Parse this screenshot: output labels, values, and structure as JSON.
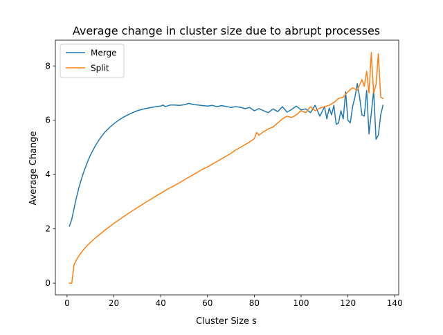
{
  "chart_data": {
    "type": "line",
    "title": "Average change in cluster size due to abrupt processes",
    "xlabel": "Cluster Size s",
    "ylabel": "Average Change",
    "xlim": [
      -5,
      141.7
    ],
    "ylim": [
      -0.43,
      8.95
    ],
    "xticks": [
      0,
      20,
      40,
      60,
      80,
      100,
      120,
      140
    ],
    "yticks": [
      0,
      2,
      4,
      6,
      8
    ],
    "legend_position": "top-left",
    "grid": false,
    "series": [
      {
        "name": "Merge",
        "color": "#1f77b4",
        "x": [
          1,
          2,
          3,
          4,
          5,
          6,
          7,
          8,
          9,
          10,
          12,
          14,
          16,
          18,
          20,
          22,
          24,
          26,
          28,
          30,
          32,
          34,
          36,
          38,
          40,
          41,
          42,
          44,
          46,
          48,
          50,
          52,
          54,
          56,
          58,
          60,
          62,
          64,
          66,
          68,
          70,
          72,
          74,
          76,
          78,
          80,
          82,
          84,
          86,
          88,
          90,
          92,
          94,
          96,
          98,
          100,
          102,
          104,
          106,
          108,
          110,
          111,
          112,
          113,
          114,
          115,
          116,
          117,
          118,
          119,
          120,
          121,
          122,
          123,
          124,
          125,
          126,
          127,
          128,
          129,
          130,
          131,
          132,
          133,
          134,
          135
        ],
        "y": [
          2.1,
          2.35,
          2.75,
          3.15,
          3.5,
          3.8,
          4.07,
          4.3,
          4.52,
          4.72,
          5.05,
          5.32,
          5.55,
          5.72,
          5.87,
          6.0,
          6.11,
          6.2,
          6.28,
          6.35,
          6.4,
          6.44,
          6.47,
          6.5,
          6.52,
          6.56,
          6.5,
          6.56,
          6.56,
          6.55,
          6.57,
          6.62,
          6.58,
          6.56,
          6.54,
          6.52,
          6.55,
          6.5,
          6.54,
          6.51,
          6.47,
          6.5,
          6.48,
          6.43,
          6.47,
          6.35,
          6.43,
          6.35,
          6.28,
          6.42,
          6.32,
          6.5,
          6.3,
          6.4,
          6.52,
          6.38,
          6.42,
          6.28,
          6.55,
          6.15,
          6.5,
          6.05,
          6.45,
          6.2,
          6.55,
          5.85,
          5.9,
          6.35,
          6.05,
          7.05,
          6.0,
          5.9,
          6.5,
          6.85,
          7.35,
          6.85,
          6.2,
          6.15,
          7.1,
          5.5,
          6.25,
          7.1,
          5.3,
          5.45,
          6.2,
          6.55
        ]
      },
      {
        "name": "Split",
        "color": "#ff7f0e",
        "x": [
          1,
          2,
          3,
          4,
          5,
          6,
          7,
          8,
          9,
          10,
          12,
          14,
          16,
          18,
          20,
          22,
          24,
          26,
          28,
          30,
          32,
          34,
          36,
          38,
          40,
          42,
          44,
          46,
          48,
          50,
          52,
          54,
          56,
          58,
          60,
          62,
          64,
          66,
          68,
          70,
          72,
          74,
          76,
          78,
          80,
          81,
          82,
          84,
          86,
          88,
          90,
          92,
          94,
          96,
          98,
          100,
          102,
          104,
          106,
          108,
          110,
          112,
          114,
          116,
          118,
          120,
          122,
          124,
          126,
          127,
          128,
          129,
          130,
          131,
          132,
          133,
          134,
          135
        ],
        "y": [
          0.0,
          0.0,
          0.68,
          0.85,
          1.0,
          1.12,
          1.23,
          1.33,
          1.42,
          1.5,
          1.66,
          1.8,
          1.94,
          2.07,
          2.2,
          2.32,
          2.44,
          2.56,
          2.67,
          2.78,
          2.89,
          3.0,
          3.1,
          3.21,
          3.31,
          3.41,
          3.51,
          3.6,
          3.7,
          3.8,
          3.9,
          4.0,
          4.1,
          4.2,
          4.28,
          4.38,
          4.48,
          4.58,
          4.68,
          4.78,
          4.9,
          5.0,
          5.1,
          5.2,
          5.32,
          5.55,
          5.45,
          5.58,
          5.68,
          5.75,
          5.9,
          6.05,
          6.15,
          6.1,
          6.2,
          6.35,
          6.28,
          6.5,
          6.35,
          6.45,
          6.5,
          6.55,
          6.65,
          6.8,
          6.85,
          7.05,
          7.2,
          7.1,
          7.5,
          7.25,
          7.8,
          7.0,
          8.5,
          7.0,
          7.3,
          8.45,
          6.85,
          6.8
        ]
      }
    ]
  }
}
